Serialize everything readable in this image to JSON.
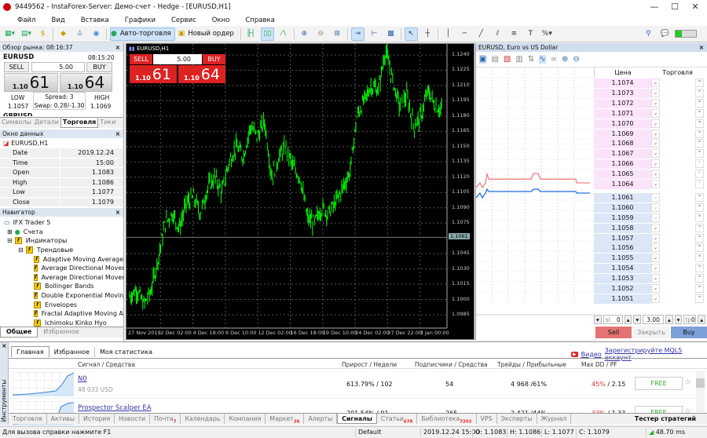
{
  "window": {
    "title": "9449562 - InstaForex-Server: Демо-счет - Hedge - [EURUSD,H1]",
    "minimize": "—",
    "maximize": "☐",
    "close": "✕"
  },
  "menu": [
    "Файл",
    "Вид",
    "Вставка",
    "Графики",
    "Сервис",
    "Окно",
    "Справка"
  ],
  "toolbar": {
    "auto_trading": "Авто-торговля",
    "new_order": "Новый ордер"
  },
  "market_watch": {
    "title": "Обзор рынка: 08:16:37",
    "symbol": "EURUSD",
    "time": "08:15:20",
    "sell": "SELL",
    "buy": "BUY",
    "volume": "5.00",
    "bid_prefix": "1.10",
    "bid_big": "61",
    "ask_prefix": "1.10",
    "ask_big": "64",
    "low_label": "LOW",
    "low": "1.1057",
    "spread": "Spread: 3",
    "swap": "Swap: 0.28/-1.30",
    "high_label": "HIGH",
    "high": "1.1069",
    "next_symbol": "GBPUSD",
    "tabs": [
      "Символы",
      "Детали",
      "Торговля",
      "Тики"
    ],
    "active_tab": 2
  },
  "data_window": {
    "title": "Окно данных",
    "symbol": "EURUSD,H1",
    "rows": [
      [
        "Date",
        "2019.12.24"
      ],
      [
        "Time",
        "15:00"
      ],
      [
        "Open",
        "1.1083"
      ],
      [
        "High",
        "1.1086"
      ],
      [
        "Low",
        "1.1077"
      ],
      [
        "Close",
        "1.1079"
      ]
    ]
  },
  "navigator": {
    "title": "Навигатор",
    "root": "IFX Trader 5",
    "accounts": "Счета",
    "indicators": "Индикаторы",
    "trend": "Трендовые",
    "items": [
      "Adaptive Moving Average",
      "Average Directional Movement Index",
      "Average Directional Movement Index Wilder",
      "Bollinger Bands",
      "Double Exponential Moving Average",
      "Envelopes",
      "Fractal Adaptive Moving Average",
      "Ichimoku Kinko Hyo"
    ],
    "tabs": [
      "Общие",
      "Избранное"
    ]
  },
  "chart": {
    "symbol": "EURUSD,H1",
    "sell": "SELL",
    "buy": "BUY",
    "volume": "5.00",
    "bid_prefix": "1.10",
    "bid_big": "61",
    "ask_prefix": "1.10",
    "ask_big": "64",
    "price_labels": [
      "1.1240",
      "1.1225",
      "1.1210",
      "1.1195",
      "1.1180",
      "1.1165",
      "1.1150",
      "1.1135",
      "1.1120",
      "1.1105",
      "1.1090",
      "1.1075",
      "1.1045",
      "1.1030",
      "1.1015",
      "1.1000",
      "1.0985"
    ],
    "current_price": "1.1061",
    "time_labels": [
      "27 Nov 2019",
      "2 Dec 02:00",
      "4 Dec 18:00",
      "9 Dec 10:00",
      "12 Dec 02:00",
      "16 Dec 18:00",
      "19 Dec 10:00",
      "24 Dec 02:00",
      "27 Dec 22:00",
      "3 Jan 00:00"
    ],
    "price_path": [
      1.1003,
      1.101,
      1.0995,
      1.1008,
      1.104,
      1.1075,
      1.1085,
      1.107,
      1.1095,
      1.11,
      1.1085,
      1.111,
      1.112,
      1.1105,
      1.1135,
      1.115,
      1.114,
      1.117,
      1.116,
      1.1175,
      1.112,
      1.114,
      1.115,
      1.113,
      1.112,
      1.108,
      1.1075,
      1.109,
      1.1085,
      1.1095,
      1.111,
      1.1125,
      1.118,
      1.1195,
      1.121,
      1.1205,
      1.1245,
      1.1215,
      1.119,
      1.12,
      1.117,
      1.118,
      1.1205,
      1.119,
      1.1185
    ],
    "line_color": "#00ff00"
  },
  "depth": {
    "title": "EURUSD, Euro vs US Dollar",
    "col_price": "Цена",
    "col_trade": "Торговля",
    "asks": [
      "1.1074",
      "1.1073",
      "1.1072",
      "1.1071",
      "1.1070",
      "1.1069",
      "1.1068",
      "1.1067",
      "1.1066",
      "1.1065",
      "1.1064"
    ],
    "bids": [
      "1.1061",
      "1.1060",
      "1.1059",
      "1.1058",
      "1.1057",
      "1.1056",
      "1.1055",
      "1.1054",
      "1.1053",
      "1.1052",
      "1.1051"
    ],
    "sl_label": "sl",
    "sl": "0",
    "volume": "3.00",
    "tp_label": "tp",
    "tp": "0",
    "sell": "Sell",
    "close": "Закрыть",
    "buy": "Buy",
    "ask_color": "#f08080",
    "bid_color": "#1e6fe0"
  },
  "signals": {
    "side_label": "Инструменты",
    "tabs": [
      "Главная",
      "Избранное",
      "Моя статистика"
    ],
    "video": "Видео",
    "register": "Зарегистрируйте MQL5 аккаунт",
    "columns": [
      "Сигнал / Средства",
      "Прирост / Недели",
      "Подписчики / Средства",
      "Трейды / Прибыльные",
      "Max DD / PF"
    ],
    "rows": [
      {
        "name": "N0",
        "funds": "48 033 USD",
        "growth": "613.79% / 102",
        "subs": "54",
        "trades": "4 968 /61%",
        "dd": "45%",
        "pf": " / 2.15",
        "price": "FREE"
      },
      {
        "name": "Prospector Scalper EA",
        "funds": "",
        "growth": "201.54% / 91",
        "subs": "265",
        "trades": "2 421 /44%",
        "dd": "33%",
        "pf": " / 1.33",
        "price": "FREE"
      }
    ]
  },
  "bottom_tabs": [
    {
      "label": "Торговля"
    },
    {
      "label": "Активы"
    },
    {
      "label": "История"
    },
    {
      "label": "Новости"
    },
    {
      "label": "Почта",
      "badge": "7"
    },
    {
      "label": "Календарь"
    },
    {
      "label": "Компания"
    },
    {
      "label": "Маркет",
      "badge": "26"
    },
    {
      "label": "Алерты"
    },
    {
      "label": "Сигналы",
      "active": true
    },
    {
      "label": "Статьи",
      "badge": "678"
    },
    {
      "label": "Библиотека",
      "badge": "7202"
    },
    {
      "label": "VPS"
    },
    {
      "label": "Эксперты"
    },
    {
      "label": "Журнал"
    }
  ],
  "strategy_tester": "Тестер стратегий",
  "status": {
    "help": "Для вызова справки нажмите F1",
    "profile": "Default",
    "datetime": "2019.12.24 15:00",
    "open": "O: 1.1083",
    "high": "H: 1.1086",
    "low": "L: 1.1077",
    "close": "C: 1.1079",
    "ping": "48.70 ms"
  }
}
